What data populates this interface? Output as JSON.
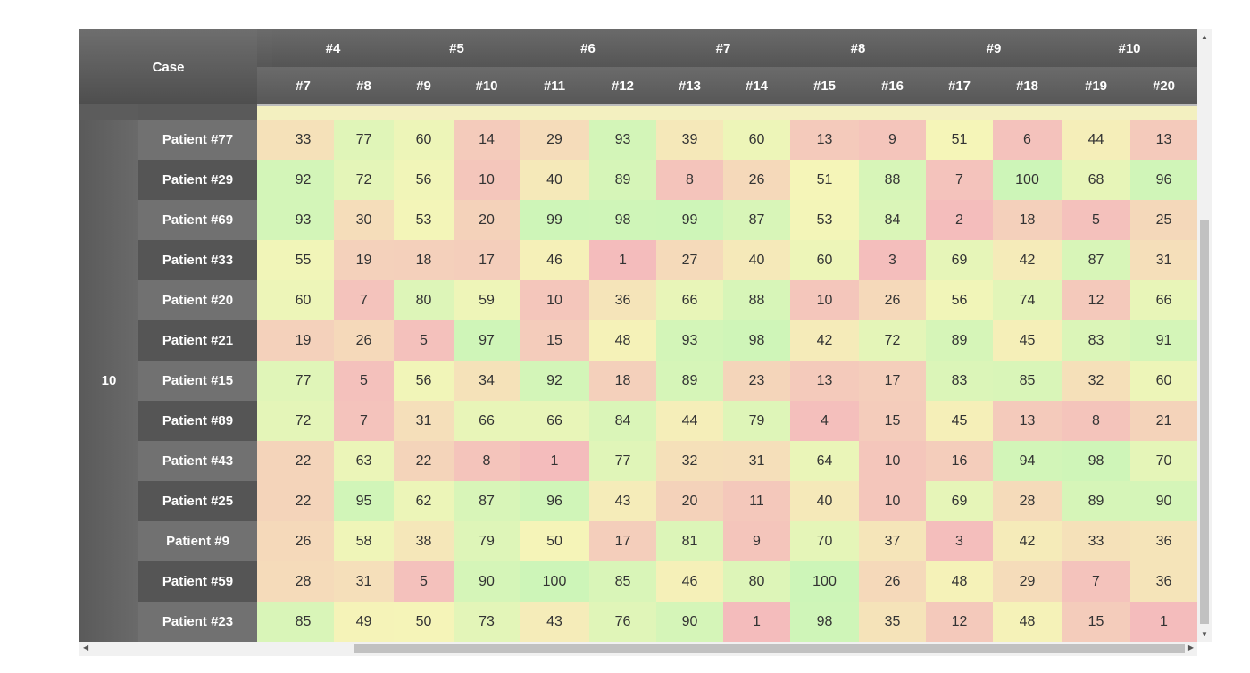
{
  "table": {
    "corner": "Case",
    "groups": [
      "#4",
      "#5",
      "#6",
      "#7",
      "#8",
      "#9",
      "#10"
    ],
    "columns": [
      "#7",
      "#8",
      "#9",
      "#10",
      "#11",
      "#12",
      "#13",
      "#14",
      "#15",
      "#16",
      "#17",
      "#18",
      "#19",
      "#20"
    ],
    "row_group": "10",
    "rows": [
      {
        "name": "Patient #77",
        "values": [
          33,
          77,
          60,
          14,
          29,
          93,
          39,
          60,
          13,
          9,
          51,
          6,
          44,
          13
        ]
      },
      {
        "name": "Patient #29",
        "values": [
          92,
          72,
          56,
          10,
          40,
          89,
          8,
          26,
          51,
          88,
          7,
          100,
          68,
          96
        ]
      },
      {
        "name": "Patient #69",
        "values": [
          93,
          30,
          53,
          20,
          99,
          98,
          99,
          87,
          53,
          84,
          2,
          18,
          5,
          25
        ]
      },
      {
        "name": "Patient #33",
        "values": [
          55,
          19,
          18,
          17,
          46,
          1,
          27,
          40,
          60,
          3,
          69,
          42,
          87,
          31
        ]
      },
      {
        "name": "Patient #20",
        "values": [
          60,
          7,
          80,
          59,
          10,
          36,
          66,
          88,
          10,
          26,
          56,
          74,
          12,
          66
        ]
      },
      {
        "name": "Patient #21",
        "values": [
          19,
          26,
          5,
          97,
          15,
          48,
          93,
          98,
          42,
          72,
          89,
          45,
          83,
          91
        ]
      },
      {
        "name": "Patient #15",
        "values": [
          77,
          5,
          56,
          34,
          92,
          18,
          89,
          23,
          13,
          17,
          83,
          85,
          32,
          60
        ]
      },
      {
        "name": "Patient #89",
        "values": [
          72,
          7,
          31,
          66,
          66,
          84,
          44,
          79,
          4,
          15,
          45,
          13,
          8,
          21
        ]
      },
      {
        "name": "Patient #43",
        "values": [
          22,
          63,
          22,
          8,
          1,
          77,
          32,
          31,
          64,
          10,
          16,
          94,
          98,
          70
        ]
      },
      {
        "name": "Patient #25",
        "values": [
          22,
          95,
          62,
          87,
          96,
          43,
          20,
          11,
          40,
          10,
          69,
          28,
          89,
          90
        ]
      },
      {
        "name": "Patient #9",
        "values": [
          26,
          58,
          38,
          79,
          50,
          17,
          81,
          9,
          70,
          37,
          3,
          42,
          33,
          36
        ]
      },
      {
        "name": "Patient #59",
        "values": [
          28,
          31,
          5,
          90,
          100,
          85,
          46,
          80,
          100,
          26,
          48,
          29,
          7,
          36
        ]
      },
      {
        "name": "Patient #23",
        "values": [
          85,
          49,
          50,
          73,
          43,
          76,
          90,
          1,
          98,
          35,
          12,
          48,
          15,
          1
        ]
      }
    ]
  }
}
